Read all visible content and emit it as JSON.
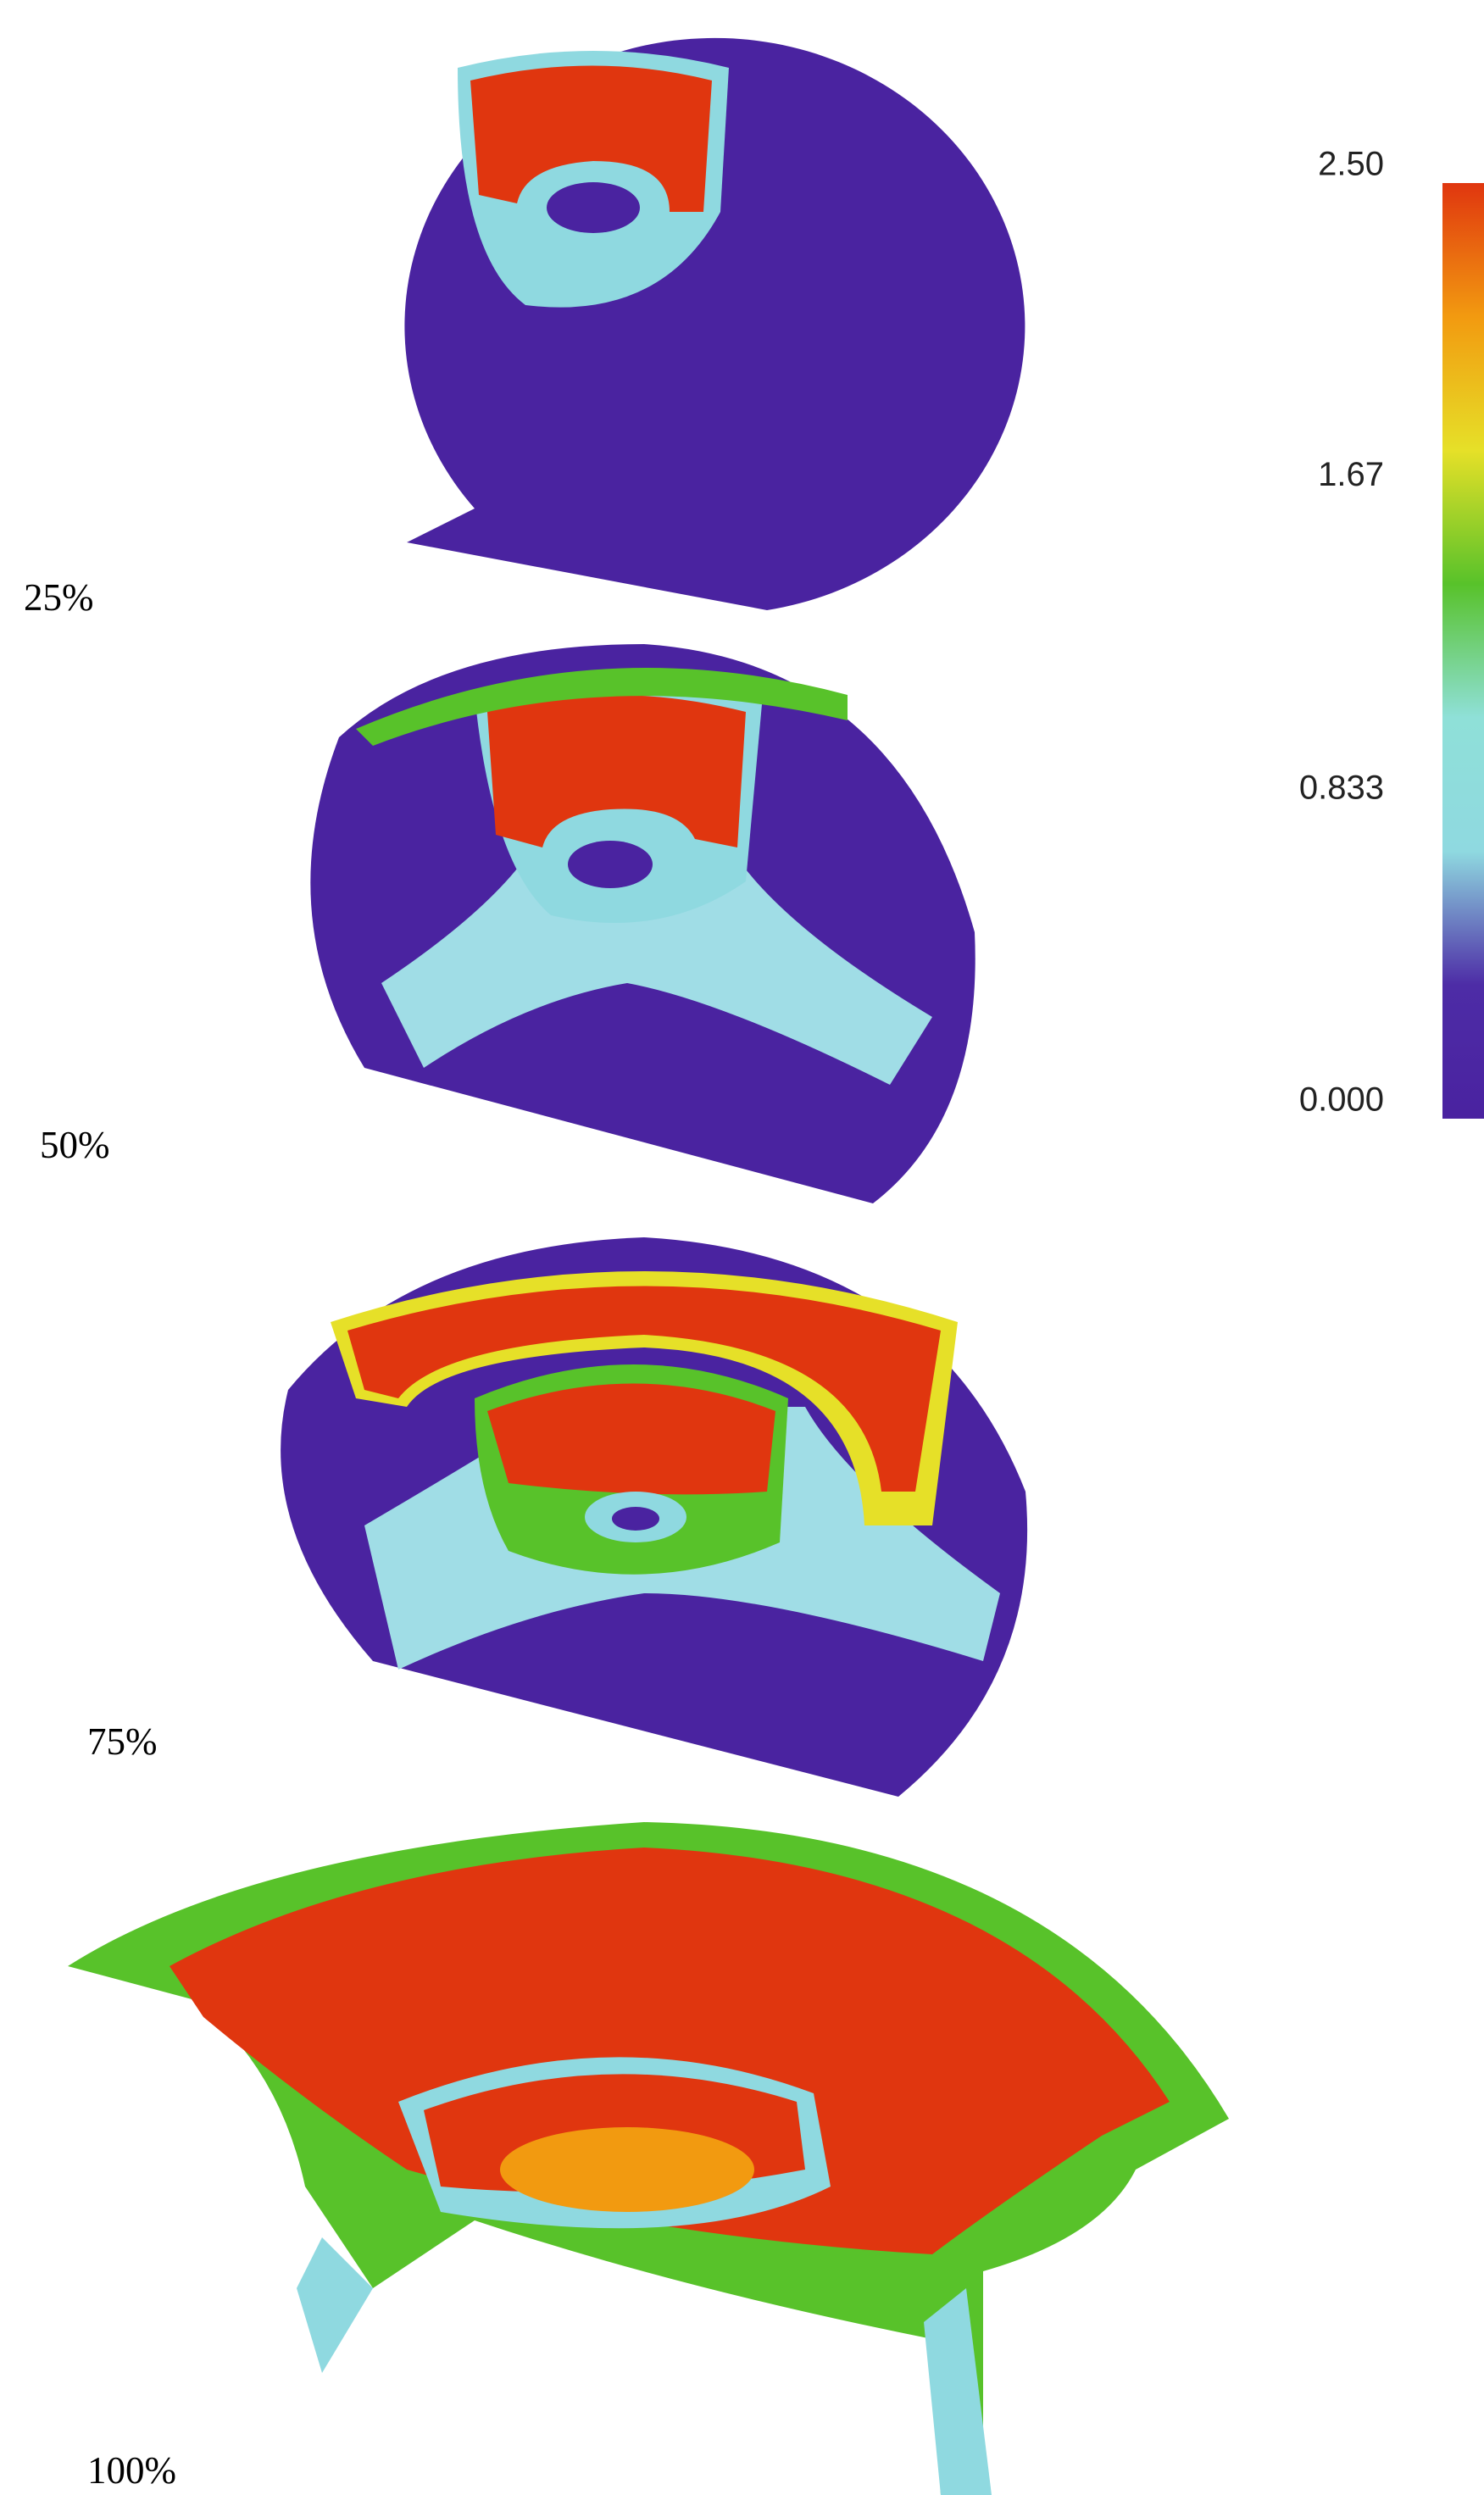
{
  "panels": [
    {
      "label": "25%"
    },
    {
      "label": "50%"
    },
    {
      "label": "75%"
    },
    {
      "label": "100%"
    }
  ],
  "colorbar": {
    "range": [
      0,
      2.5
    ],
    "ticks": [
      {
        "value": 2.5,
        "label": "2.50"
      },
      {
        "value": 1.67,
        "label": "1.67"
      },
      {
        "value": 0.833,
        "label": "0.833"
      },
      {
        "value": 0,
        "label": "0.000"
      }
    ],
    "colors": [
      "#4a22a0",
      "#4d2ca6",
      "#8fd9e0",
      "#8fe0d8",
      "#58c22a",
      "#e6e028",
      "#f29a10",
      "#e0360f"
    ]
  }
}
